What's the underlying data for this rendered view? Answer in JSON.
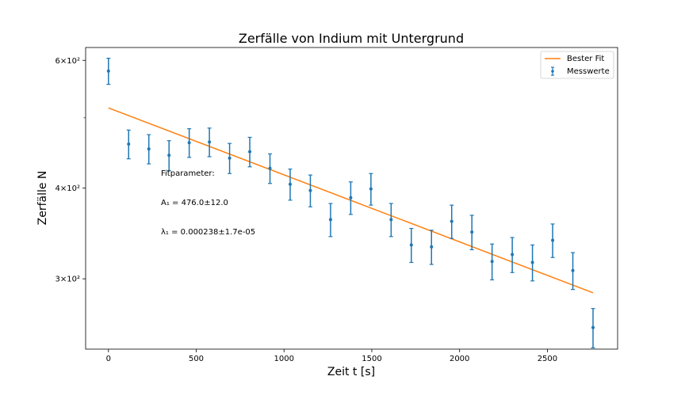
{
  "chart_data": {
    "type": "scatter",
    "title": "Zerfälle von Indium mit Untergrund",
    "xlabel": "Zeit t [s]",
    "ylabel": "Zerfälle N",
    "xlim": [
      -130,
      2900
    ],
    "ylim": [
      240,
      625
    ],
    "yscale": "log",
    "grid": false,
    "legend_position": "top-right",
    "x_ticks": [
      0,
      500,
      1000,
      1500,
      2000,
      2500
    ],
    "x_tick_labels": [
      "0",
      "500",
      "1000",
      "1500",
      "2000",
      "2500"
    ],
    "y_ticks": [
      300,
      400,
      600
    ],
    "y_tick_labels": [
      "3×10²",
      "4×10²",
      "6×10²"
    ],
    "y_minor_ticks": [
      500
    ],
    "series": [
      {
        "name": "Messwerte",
        "kind": "errorbar",
        "color": "#1f77b4",
        "x": [
          0,
          115,
          230,
          345,
          460,
          575,
          690,
          805,
          920,
          1035,
          1150,
          1265,
          1380,
          1495,
          1610,
          1725,
          1840,
          1955,
          2070,
          2185,
          2300,
          2415,
          2530,
          2645,
          2760
        ],
        "y": [
          580,
          460,
          453,
          444,
          462,
          463,
          440,
          449,
          426,
          405,
          397,
          362,
          388,
          399,
          362,
          334,
          332,
          360,
          348,
          317,
          324,
          316,
          339,
          308,
          257
        ],
        "yerr": [
          24,
          21,
          21,
          21,
          21,
          21,
          21,
          21,
          20,
          20,
          20,
          19,
          20,
          20,
          19,
          18,
          18,
          19,
          19,
          18,
          18,
          18,
          18,
          18,
          16
        ]
      },
      {
        "name": "Bester Fit",
        "kind": "line",
        "color": "#ff7f0e",
        "x": [
          0,
          2760
        ],
        "y": [
          516,
          287
        ]
      }
    ],
    "annotations": {
      "heading": "Fitparameter:",
      "a1": "A₁ = 476.0±12.0",
      "lambda1": "λ₁ = 0.000238±1.7e-05"
    }
  }
}
